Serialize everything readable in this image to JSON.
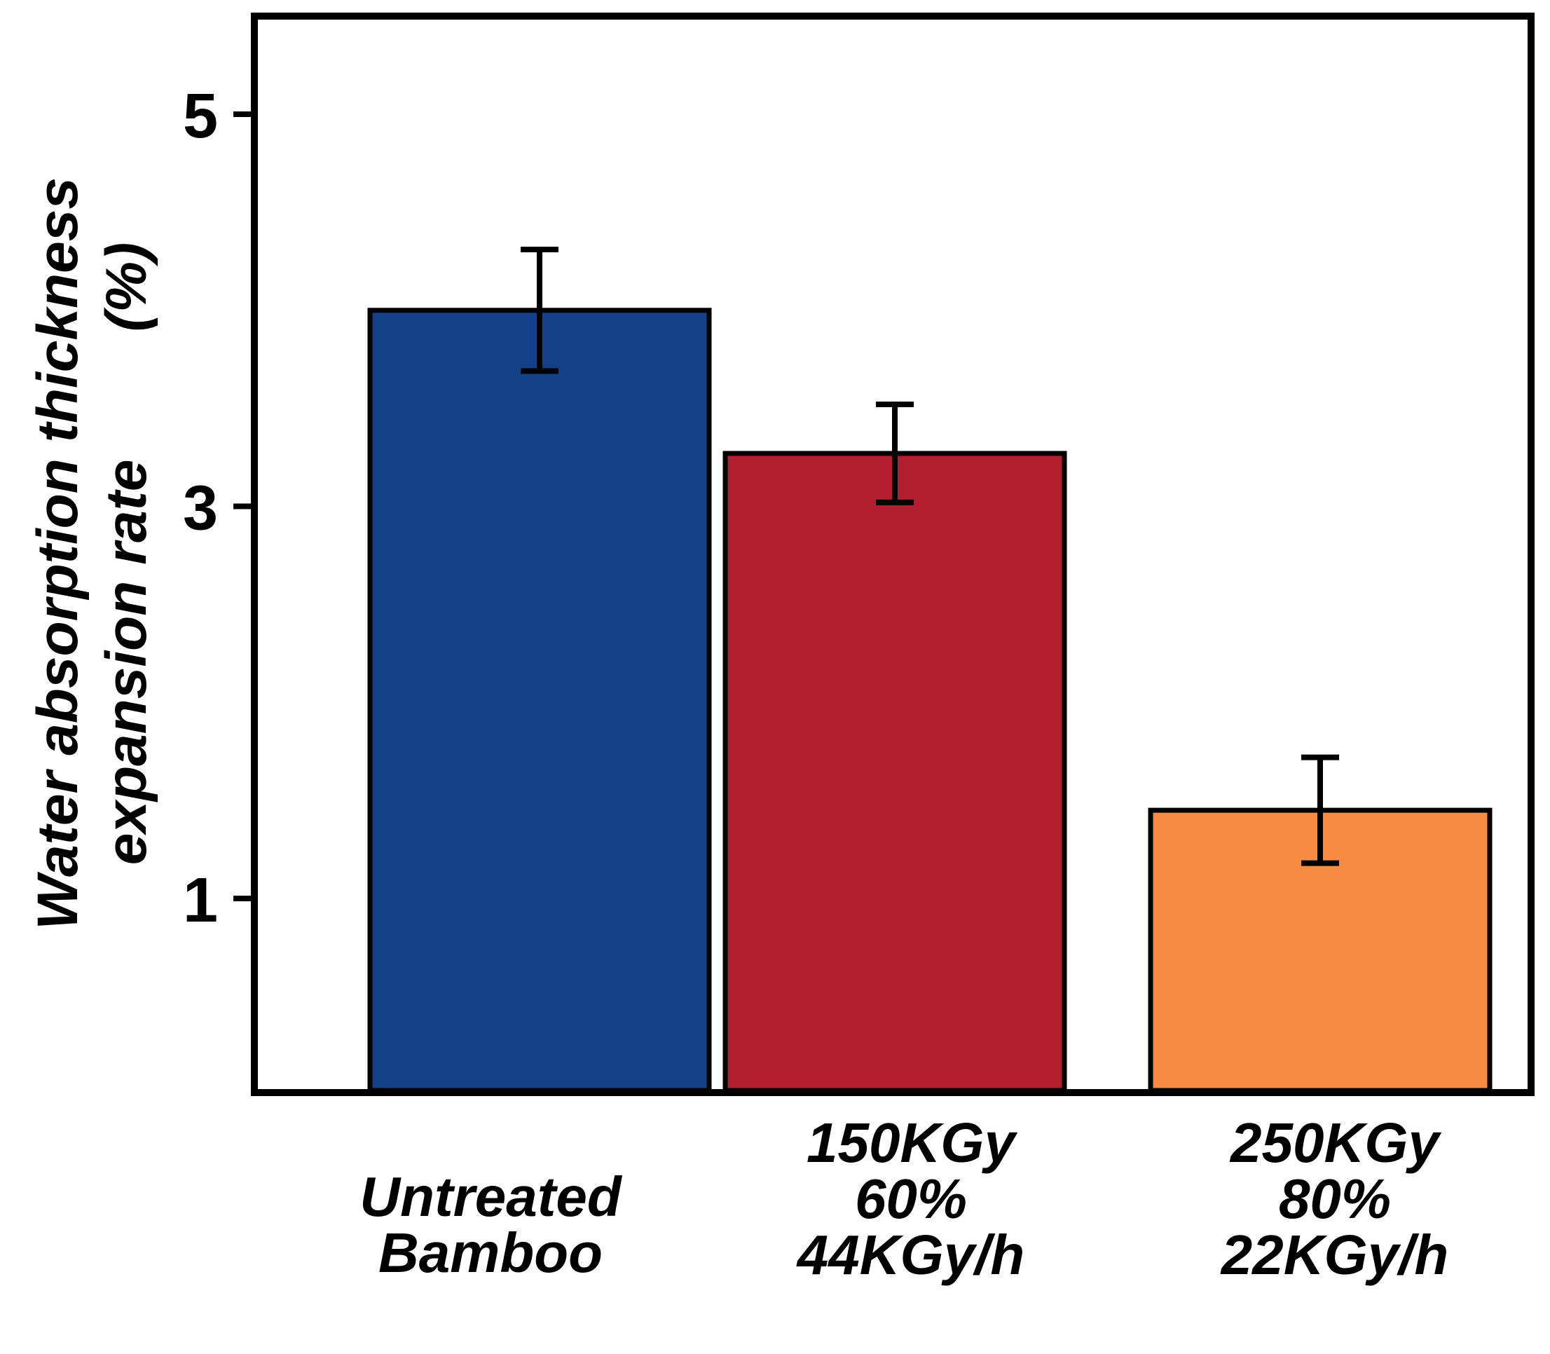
{
  "chart_data": {
    "type": "bar",
    "categories": [
      [
        "Untreated",
        "Bamboo"
      ],
      [
        "150KGy",
        "60%",
        "44KGy/h"
      ],
      [
        "250KGy",
        "80%",
        "22KGy/h"
      ]
    ],
    "values": [
      4.0,
      3.27,
      1.45
    ],
    "error": [
      0.31,
      0.25,
      0.27
    ],
    "colors": [
      "#134185",
      "#b22030",
      "#f68b41"
    ],
    "ylabel_lines": [
      "Water absorption thickness",
      "expansion rate        (%)"
    ],
    "xlabel": "",
    "yticks": [
      1,
      3,
      5
    ],
    "ylim": [
      0.0,
      5.5
    ],
    "grid": false,
    "legend": "none"
  }
}
